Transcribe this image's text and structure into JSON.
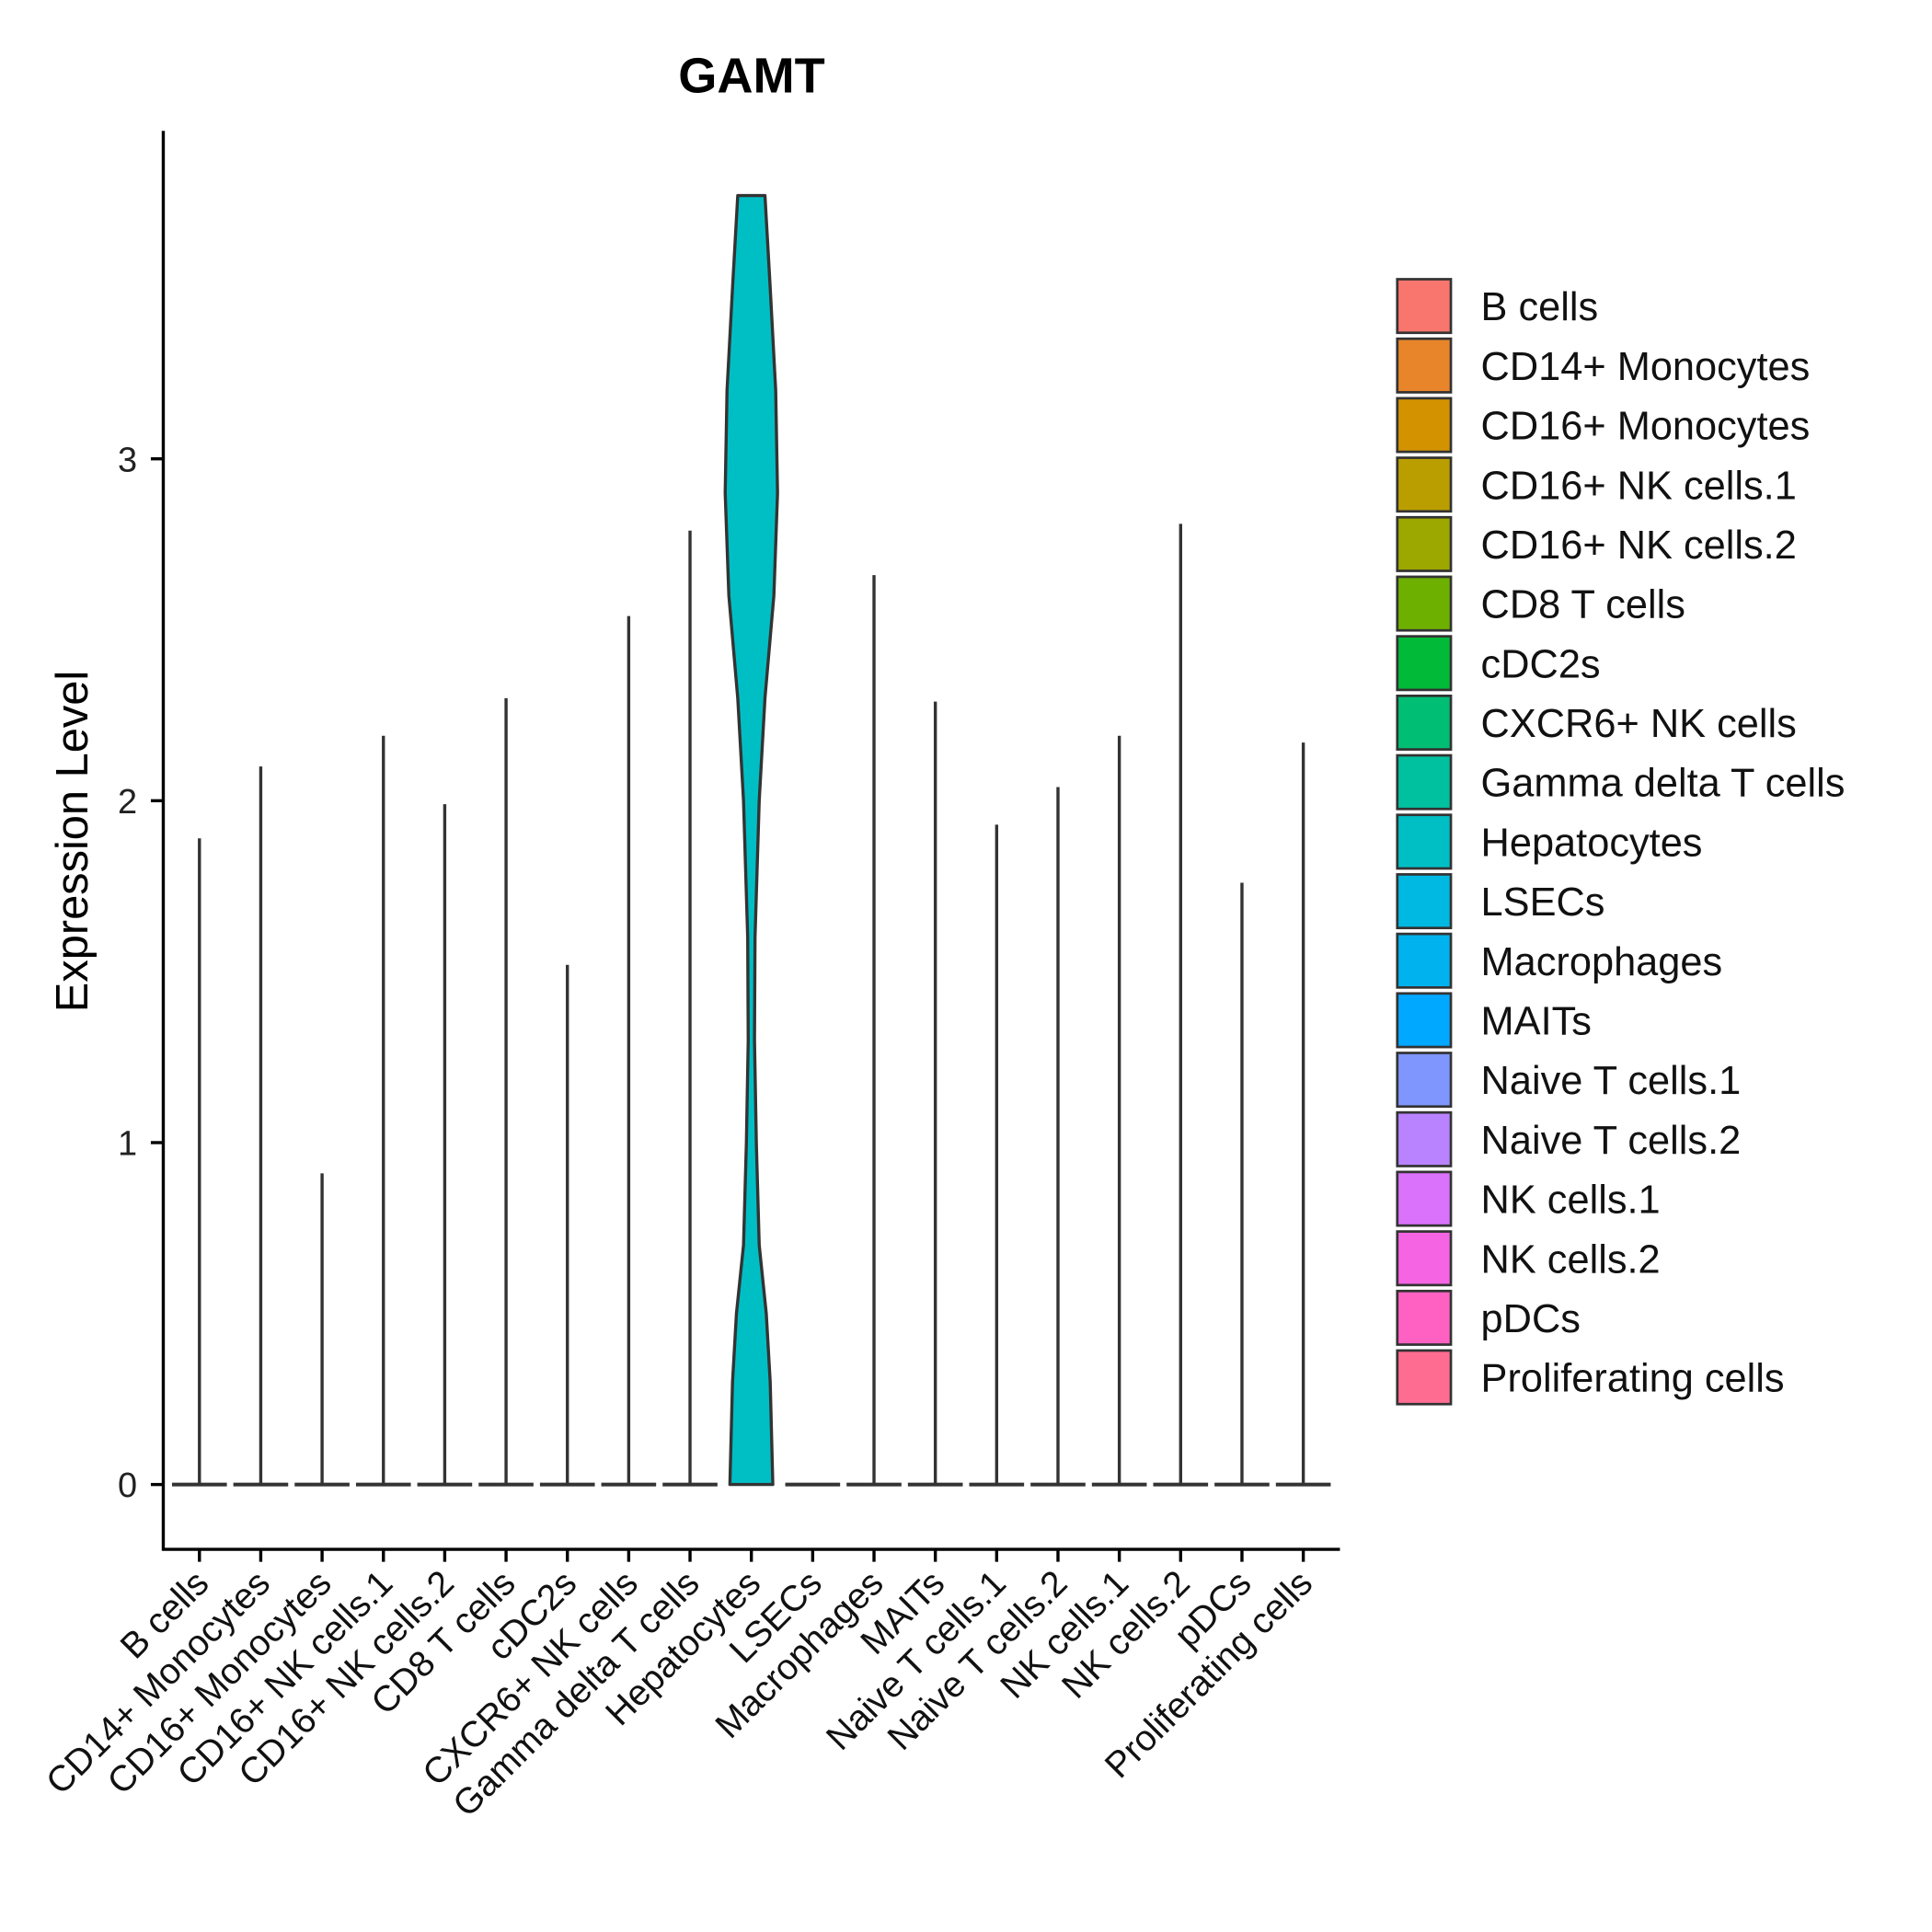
{
  "chart_data": {
    "type": "violin",
    "title": "GAMT",
    "xlabel": "",
    "ylabel": "Expression Level",
    "ylim": [
      -0.19,
      4.0
    ],
    "yticks": [
      0,
      1,
      2,
      3
    ],
    "ytick_labels": [
      "0",
      "1",
      "2",
      "3"
    ],
    "grid": false,
    "legend_position": "right",
    "categories": [
      "B cells",
      "CD14+ Monocytes",
      "CD16+ Monocytes",
      "CD16+ NK cells.1",
      "CD16+ NK cells.2",
      "CD8 T cells",
      "cDC2s",
      "CXCR6+ NK cells",
      "Gamma delta T cells",
      "Hepatocytes",
      "LSECs",
      "Macrophages",
      "MAITs",
      "Naive T cells.1",
      "Naive T cells.2",
      "NK cells.1",
      "NK cells.2",
      "pDCs",
      "Proliferating cells"
    ],
    "max_values": [
      1.89,
      2.1,
      0.91,
      2.19,
      1.99,
      2.3,
      1.52,
      2.54,
      2.79,
      3.77,
      0,
      2.66,
      2.29,
      1.93,
      2.04,
      2.19,
      2.81,
      1.76,
      2.17
    ],
    "colors": [
      "#F8766D",
      "#E8852A",
      "#D39200",
      "#BA9E00",
      "#9CA700",
      "#6EB000",
      "#00BA38",
      "#00BF74",
      "#00C19F",
      "#00BFC4",
      "#00B9E3",
      "#00B2ED",
      "#00A8FF",
      "#7F96FF",
      "#B983FF",
      "#DB72FB",
      "#F564E3",
      "#FF61C3",
      "#FF6C91"
    ],
    "hepatocytes_density_profile": {
      "y": [
        0,
        0.3,
        0.5,
        0.7,
        1.0,
        1.3,
        1.6,
        2.0,
        2.3,
        2.6,
        2.9,
        3.2,
        3.5,
        3.77
      ],
      "relative_width": [
        0.82,
        0.72,
        0.57,
        0.3,
        0.19,
        0.12,
        0.14,
        0.3,
        0.52,
        0.86,
        1.0,
        0.93,
        0.72,
        0.52
      ]
    }
  }
}
